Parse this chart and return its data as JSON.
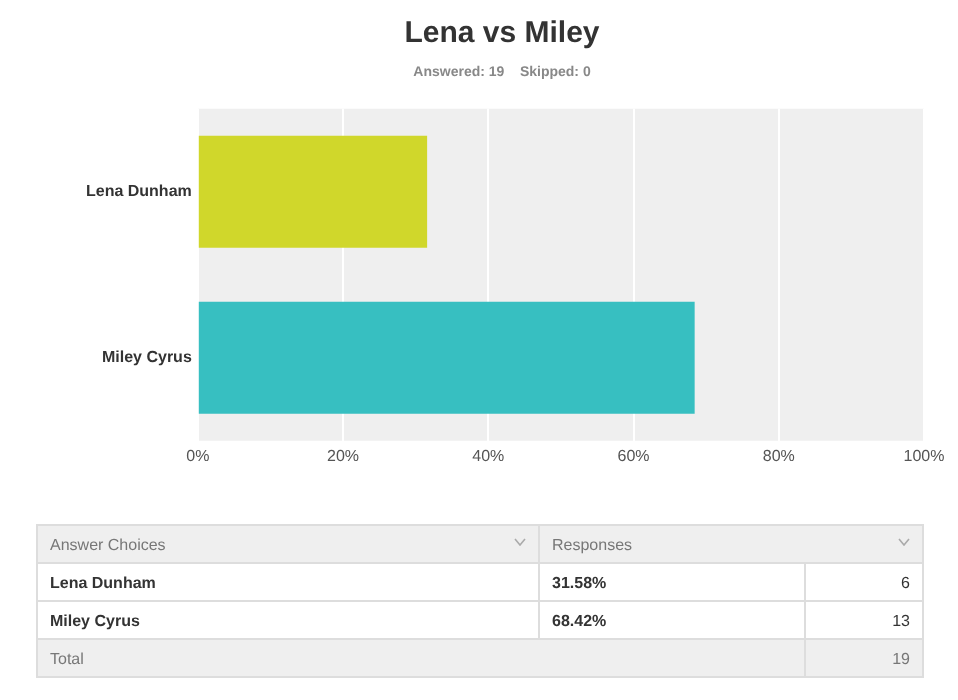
{
  "chart_data": {
    "type": "bar",
    "orientation": "horizontal",
    "title": "Lena vs Miley",
    "subtitle": "Answered: 19    Skipped: 0",
    "categories": [
      "Lena Dunham",
      "Miley Cyrus"
    ],
    "values": [
      31.58,
      68.42
    ],
    "colors": [
      "#d0d72b",
      "#37bfc1"
    ],
    "xlim": [
      0,
      100
    ],
    "xticks": [
      {
        "value": 0,
        "label": "0%"
      },
      {
        "value": 20,
        "label": "20%"
      },
      {
        "value": 40,
        "label": "40%"
      },
      {
        "value": 60,
        "label": "60%"
      },
      {
        "value": 80,
        "label": "80%"
      },
      {
        "value": 100,
        "label": "100%"
      }
    ],
    "grid": "x",
    "legend": false,
    "annotations": [
      "Answer Choices",
      "Responses",
      "31.58%",
      "68.42%",
      "6",
      "13",
      "Total",
      "19"
    ]
  }
}
